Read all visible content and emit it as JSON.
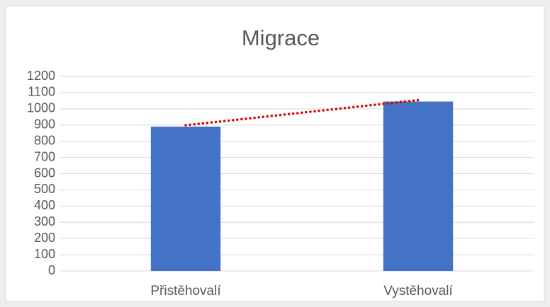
{
  "chart_data": {
    "type": "bar",
    "title": "Migrace",
    "categories": [
      "Přistěhovalí",
      "Vystěhovalí"
    ],
    "values": [
      890,
      1045
    ],
    "color": "#4472c4",
    "ylim": [
      0,
      1200
    ],
    "yticks": [
      0,
      100,
      200,
      300,
      400,
      500,
      600,
      700,
      800,
      900,
      1000,
      1100,
      1200
    ],
    "grid": true,
    "trendline": {
      "type": "linear",
      "color": "#e00000"
    }
  }
}
